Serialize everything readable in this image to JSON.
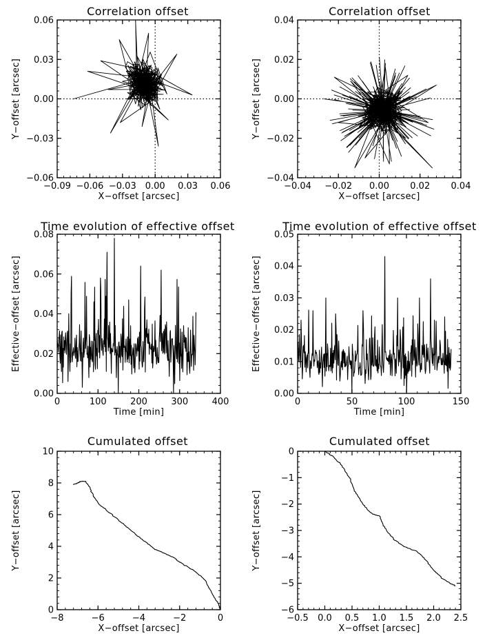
{
  "chart_data": [
    {
      "id": "p1",
      "type": "line",
      "title": "Correlation offset",
      "xlabel": "X−offset [arcsec]",
      "ylabel": "Y−offset [arcsec]",
      "xlim": [
        -0.09,
        0.06
      ],
      "ylim": [
        -0.06,
        0.06
      ],
      "xticks": [
        -0.09,
        -0.06,
        -0.03,
        0.0,
        0.03,
        0.06
      ],
      "xticklabels": [
        "−0.09",
        "−0.06",
        "−0.03",
        "0.00",
        "0.03",
        "0.06"
      ],
      "yticks": [
        -0.06,
        -0.03,
        0.0,
        0.03,
        0.06
      ],
      "yticklabels": [
        "−0.06",
        "−0.03",
        "0.00",
        "0.03",
        "0.06"
      ],
      "zero_lines": true,
      "series": [
        {
          "points": [
            [
              -0.075,
              0.0
            ],
            [
              -0.043,
              0.007
            ],
            [
              -0.062,
              0.021
            ],
            [
              -0.05,
              0.029
            ],
            [
              -0.033,
              0.045
            ],
            [
              -0.018,
              0.059
            ],
            [
              -0.006,
              0.05
            ],
            [
              0.02,
              0.034
            ],
            [
              0.034,
              0.003
            ],
            [
              0.012,
              -0.016
            ],
            [
              0.003,
              -0.036
            ],
            [
              -0.012,
              -0.021
            ],
            [
              -0.032,
              -0.018
            ],
            [
              -0.041,
              -0.026
            ],
            [
              -0.026,
              0.0
            ],
            [
              -0.012,
              0.012
            ],
            [
              -0.01,
              0.01
            ]
          ]
        }
      ]
    },
    {
      "id": "p2",
      "type": "line",
      "title": "Correlation offset",
      "xlabel": "X−offset [arcsec]",
      "ylabel": "Y−offset [arcsec]",
      "xlim": [
        -0.04,
        0.04
      ],
      "ylim": [
        -0.04,
        0.04
      ],
      "xticks": [
        -0.04,
        -0.02,
        0.0,
        0.02,
        0.04
      ],
      "xticklabels": [
        "−0.04",
        "−0.02",
        "0.00",
        "0.02",
        "0.04"
      ],
      "yticks": [
        -0.04,
        -0.02,
        0.0,
        0.02,
        0.04
      ],
      "yticklabels": [
        "−0.04",
        "−0.02",
        "0.00",
        "0.02",
        "0.04"
      ],
      "zero_lines": true,
      "series": [
        {
          "points": [
            [
              -0.027,
              0.0
            ],
            [
              -0.022,
              0.011
            ],
            [
              -0.014,
              0.009
            ],
            [
              0.003,
              0.016
            ],
            [
              0.014,
              0.012
            ],
            [
              0.028,
              0.007
            ],
            [
              0.024,
              -0.012
            ],
            [
              0.026,
              -0.035
            ],
            [
              0.013,
              -0.02
            ],
            [
              0.005,
              -0.033
            ],
            [
              -0.007,
              -0.03
            ],
            [
              -0.012,
              -0.035
            ],
            [
              -0.017,
              -0.019
            ],
            [
              -0.02,
              -0.012
            ],
            [
              0.002,
              -0.006
            ]
          ]
        }
      ]
    },
    {
      "id": "p3",
      "type": "line",
      "title": "Time evolution of effective offset",
      "xlabel": "Time [min]",
      "ylabel": "Effective−offset [arcsec]",
      "xlim": [
        0,
        400
      ],
      "ylim": [
        0,
        0.08
      ],
      "xticks": [
        0,
        100,
        200,
        300,
        400
      ],
      "xticklabels": [
        "0",
        "100",
        "200",
        "300",
        "400"
      ],
      "yticks": [
        0.0,
        0.02,
        0.04,
        0.06,
        0.08
      ],
      "yticklabels": [
        "0.00",
        "0.02",
        "0.04",
        "0.06",
        "0.08"
      ],
      "series": [
        {
          "x_range": [
            0,
            340
          ],
          "baseline": 0.022,
          "peaks": [
            [
              28,
              0.04
            ],
            [
              62,
              0.003
            ],
            [
              90,
              0.046
            ],
            [
              106,
              0.058
            ],
            [
              122,
              0.071
            ],
            [
              140,
              0.078
            ],
            [
              150,
              0.0
            ],
            [
              175,
              0.047
            ],
            [
              205,
              0.064
            ],
            [
              220,
              0.037
            ],
            [
              255,
              0.062
            ],
            [
              285,
              0.0
            ],
            [
              310,
              0.034
            ]
          ]
        }
      ]
    },
    {
      "id": "p4",
      "type": "line",
      "title": "Time evolution of effective offset",
      "xlabel": "Time [min]",
      "ylabel": "Effective−offset [arcsec]",
      "xlim": [
        0,
        150
      ],
      "ylim": [
        0,
        0.05
      ],
      "xticks": [
        0,
        50,
        100,
        150
      ],
      "xticklabels": [
        "0",
        "50",
        "100",
        "150"
      ],
      "yticks": [
        0.0,
        0.01,
        0.02,
        0.03,
        0.04,
        0.05
      ],
      "yticklabels": [
        "0.00",
        "0.01",
        "0.02",
        "0.03",
        "0.04",
        "0.05"
      ],
      "series": [
        {
          "x_range": [
            0,
            141
          ],
          "baseline": 0.01,
          "peaks": [
            [
              3,
              0.023
            ],
            [
              14,
              0.026
            ],
            [
              26,
              0.03
            ],
            [
              35,
              0.025
            ],
            [
              50,
              0.0
            ],
            [
              60,
              0.026
            ],
            [
              80,
              0.043
            ],
            [
              92,
              0.03
            ],
            [
              100,
              0.0
            ],
            [
              112,
              0.03
            ],
            [
              122,
              0.036
            ],
            [
              138,
              0.017
            ]
          ]
        }
      ]
    },
    {
      "id": "p5",
      "type": "line",
      "title": "Cumulated offset",
      "xlabel": "X−offset [arcsec]",
      "ylabel": "Y−offset [arcsec]",
      "xlim": [
        -8,
        0
      ],
      "ylim": [
        0,
        10
      ],
      "xticks": [
        -8,
        -6,
        -4,
        -2,
        0
      ],
      "xticklabels": [
        "−8",
        "−6",
        "−4",
        "−2",
        "0"
      ],
      "yticks": [
        0,
        2,
        4,
        6,
        8,
        10
      ],
      "yticklabels": [
        "0",
        "2",
        "4",
        "6",
        "8",
        "10"
      ],
      "series": [
        {
          "points": [
            [
              -7.2,
              7.9
            ],
            [
              -7.0,
              8.0
            ],
            [
              -6.85,
              8.1
            ],
            [
              -6.6,
              8.1
            ],
            [
              -6.4,
              7.7
            ],
            [
              -6.2,
              7.1
            ],
            [
              -5.9,
              6.6
            ],
            [
              -5.3,
              6.0
            ],
            [
              -4.7,
              5.35
            ],
            [
              -4.2,
              4.8
            ],
            [
              -3.7,
              4.3
            ],
            [
              -3.2,
              3.8
            ],
            [
              -2.8,
              3.6
            ],
            [
              -2.3,
              3.3
            ],
            [
              -1.8,
              2.85
            ],
            [
              -1.3,
              2.45
            ],
            [
              -0.8,
              1.95
            ],
            [
              -0.4,
              1.0
            ],
            [
              -0.1,
              0.35
            ],
            [
              0.0,
              0.0
            ]
          ]
        }
      ]
    },
    {
      "id": "p6",
      "type": "line",
      "title": "Cumulated offset",
      "xlabel": "X−offset [arcsec]",
      "ylabel": "Y−offset [arcsec]",
      "xlim": [
        -0.5,
        2.5
      ],
      "ylim": [
        -6,
        0
      ],
      "xticks": [
        -0.5,
        0.0,
        0.5,
        1.0,
        1.5,
        2.0,
        2.5
      ],
      "xticklabels": [
        "−0.5",
        "0.0",
        "0.5",
        "1.0",
        "1.5",
        "2.0",
        "2.5"
      ],
      "yticks": [
        -6,
        -5,
        -4,
        -3,
        -2,
        -1,
        0
      ],
      "yticklabels": [
        "−6",
        "−5",
        "−4",
        "−3",
        "−2",
        "−1",
        "0"
      ],
      "series": [
        {
          "points": [
            [
              0.0,
              0.0
            ],
            [
              0.15,
              -0.2
            ],
            [
              0.3,
              -0.5
            ],
            [
              0.45,
              -1.0
            ],
            [
              0.55,
              -1.5
            ],
            [
              0.7,
              -2.0
            ],
            [
              0.85,
              -2.35
            ],
            [
              1.0,
              -2.45
            ],
            [
              1.1,
              -2.9
            ],
            [
              1.25,
              -3.3
            ],
            [
              1.45,
              -3.6
            ],
            [
              1.7,
              -3.8
            ],
            [
              1.85,
              -4.1
            ],
            [
              2.0,
              -4.5
            ],
            [
              2.15,
              -4.8
            ],
            [
              2.3,
              -5.0
            ],
            [
              2.4,
              -5.1
            ]
          ]
        }
      ]
    }
  ]
}
